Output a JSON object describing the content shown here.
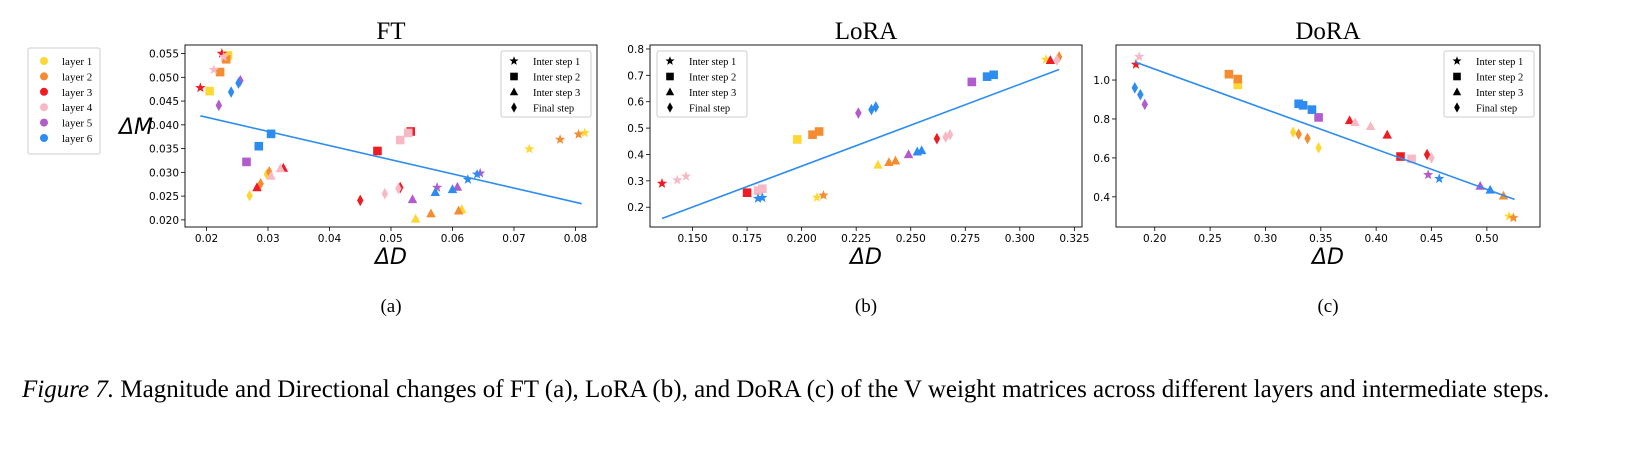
{
  "layer_legend": [
    {
      "label": "layer 1",
      "color": "#FDD835"
    },
    {
      "label": "layer 2",
      "color": "#F48C32"
    },
    {
      "label": "layer 3",
      "color": "#EF1C24"
    },
    {
      "label": "layer 4",
      "color": "#F8B9C6"
    },
    {
      "label": "layer 5",
      "color": "#B25BCC"
    },
    {
      "label": "layer 6",
      "color": "#2C8CF0"
    }
  ],
  "step_legend": [
    {
      "label": "Inter step 1",
      "marker": "star"
    },
    {
      "label": "Inter step 2",
      "marker": "square"
    },
    {
      "label": "Inter step 3",
      "marker": "triangle"
    },
    {
      "label": "Final step",
      "marker": "diamond"
    }
  ],
  "chart_data": [
    {
      "type": "scatter",
      "title": "FT",
      "xlabel": "ΔD",
      "ylabel": "ΔM",
      "sub_label": "(a)",
      "xlim": [
        0.0165,
        0.0835
      ],
      "ylim": [
        0.0185,
        0.0568
      ],
      "xticks": [
        0.02,
        0.03,
        0.04,
        0.05,
        0.06,
        0.07,
        0.08
      ],
      "xtick_labels": [
        "0.02",
        "0.03",
        "0.04",
        "0.05",
        "0.06",
        "0.07",
        "0.08"
      ],
      "yticks": [
        0.02,
        0.025,
        0.03,
        0.035,
        0.04,
        0.045,
        0.05,
        0.055
      ],
      "ytick_labels": [
        "0.020",
        "0.025",
        "0.030",
        "0.035",
        "0.040",
        "0.045",
        "0.050",
        "0.055"
      ],
      "legend_position": "top-right",
      "fit_line": [
        [
          0.019,
          0.0419
        ],
        [
          0.081,
          0.0234
        ]
      ],
      "points": [
        {
          "layer": 1,
          "step": 1,
          "x": 0.0725,
          "y": 0.0349
        },
        {
          "layer": 1,
          "step": 1,
          "x": 0.0815,
          "y": 0.0383
        },
        {
          "layer": 1,
          "step": 2,
          "x": 0.0235,
          "y": 0.0546
        },
        {
          "layer": 1,
          "step": 2,
          "x": 0.0205,
          "y": 0.0471
        },
        {
          "layer": 1,
          "step": 3,
          "x": 0.054,
          "y": 0.0202
        },
        {
          "layer": 1,
          "step": 3,
          "x": 0.0615,
          "y": 0.0222
        },
        {
          "layer": 1,
          "step": 4,
          "x": 0.027,
          "y": 0.0251
        },
        {
          "layer": 1,
          "step": 4,
          "x": 0.0298,
          "y": 0.0296
        },
        {
          "layer": 2,
          "step": 1,
          "x": 0.0775,
          "y": 0.0369
        },
        {
          "layer": 2,
          "step": 1,
          "x": 0.0805,
          "y": 0.038
        },
        {
          "layer": 2,
          "step": 2,
          "x": 0.0222,
          "y": 0.0511
        },
        {
          "layer": 2,
          "step": 2,
          "x": 0.0232,
          "y": 0.0538
        },
        {
          "layer": 2,
          "step": 3,
          "x": 0.0565,
          "y": 0.0213
        },
        {
          "layer": 2,
          "step": 3,
          "x": 0.061,
          "y": 0.0219
        },
        {
          "layer": 2,
          "step": 4,
          "x": 0.0288,
          "y": 0.0276
        },
        {
          "layer": 2,
          "step": 4,
          "x": 0.0302,
          "y": 0.0301
        },
        {
          "layer": 3,
          "step": 1,
          "x": 0.019,
          "y": 0.0478
        },
        {
          "layer": 3,
          "step": 1,
          "x": 0.0225,
          "y": 0.055
        },
        {
          "layer": 3,
          "step": 2,
          "x": 0.0478,
          "y": 0.0345
        },
        {
          "layer": 3,
          "step": 2,
          "x": 0.0532,
          "y": 0.0386
        },
        {
          "layer": 3,
          "step": 3,
          "x": 0.0282,
          "y": 0.0268
        },
        {
          "layer": 3,
          "step": 3,
          "x": 0.0325,
          "y": 0.0309
        },
        {
          "layer": 3,
          "step": 4,
          "x": 0.045,
          "y": 0.0241
        },
        {
          "layer": 3,
          "step": 4,
          "x": 0.0515,
          "y": 0.0268
        },
        {
          "layer": 4,
          "step": 1,
          "x": 0.0212,
          "y": 0.0516
        },
        {
          "layer": 4,
          "step": 1,
          "x": 0.0228,
          "y": 0.0543
        },
        {
          "layer": 4,
          "step": 2,
          "x": 0.0515,
          "y": 0.0368
        },
        {
          "layer": 4,
          "step": 2,
          "x": 0.0528,
          "y": 0.0383
        },
        {
          "layer": 4,
          "step": 3,
          "x": 0.0305,
          "y": 0.0292
        },
        {
          "layer": 4,
          "step": 3,
          "x": 0.032,
          "y": 0.0308
        },
        {
          "layer": 4,
          "step": 4,
          "x": 0.049,
          "y": 0.0255
        },
        {
          "layer": 4,
          "step": 4,
          "x": 0.0512,
          "y": 0.0266
        },
        {
          "layer": 5,
          "step": 1,
          "x": 0.0575,
          "y": 0.0268
        },
        {
          "layer": 5,
          "step": 1,
          "x": 0.0645,
          "y": 0.0298
        },
        {
          "layer": 5,
          "step": 2,
          "x": 0.0265,
          "y": 0.0322
        },
        {
          "layer": 5,
          "step": 3,
          "x": 0.0535,
          "y": 0.0243
        },
        {
          "layer": 5,
          "step": 3,
          "x": 0.0608,
          "y": 0.0269
        },
        {
          "layer": 5,
          "step": 4,
          "x": 0.022,
          "y": 0.0441
        },
        {
          "layer": 5,
          "step": 4,
          "x": 0.0255,
          "y": 0.0493
        },
        {
          "layer": 6,
          "step": 1,
          "x": 0.0625,
          "y": 0.0285
        },
        {
          "layer": 6,
          "step": 1,
          "x": 0.064,
          "y": 0.0296
        },
        {
          "layer": 6,
          "step": 2,
          "x": 0.0285,
          "y": 0.0355
        },
        {
          "layer": 6,
          "step": 2,
          "x": 0.0305,
          "y": 0.0381
        },
        {
          "layer": 6,
          "step": 3,
          "x": 0.0572,
          "y": 0.0258
        },
        {
          "layer": 6,
          "step": 3,
          "x": 0.06,
          "y": 0.0264
        },
        {
          "layer": 6,
          "step": 4,
          "x": 0.024,
          "y": 0.0469
        },
        {
          "layer": 6,
          "step": 4,
          "x": 0.0252,
          "y": 0.0488
        }
      ]
    },
    {
      "type": "scatter",
      "title": "LoRA",
      "xlabel": "ΔD",
      "ylabel": "",
      "sub_label": "(b)",
      "xlim": [
        0.1305,
        0.3285
      ],
      "ylim": [
        0.125,
        0.815
      ],
      "xticks": [
        0.15,
        0.175,
        0.2,
        0.225,
        0.25,
        0.275,
        0.3,
        0.325
      ],
      "xtick_labels": [
        "0.150",
        "0.175",
        "0.200",
        "0.225",
        "0.250",
        "0.275",
        "0.300",
        "0.325"
      ],
      "yticks": [
        0.2,
        0.3,
        0.4,
        0.5,
        0.6,
        0.7,
        0.8
      ],
      "ytick_labels": [
        "0.2",
        "0.3",
        "0.4",
        "0.5",
        "0.6",
        "0.7",
        "0.8"
      ],
      "legend_position": "top-left",
      "fit_line": [
        [
          0.136,
          0.157
        ],
        [
          0.318,
          0.722
        ]
      ],
      "points": [
        {
          "layer": 1,
          "step": 1,
          "x": 0.207,
          "y": 0.237
        },
        {
          "layer": 1,
          "step": 1,
          "x": 0.312,
          "y": 0.76
        },
        {
          "layer": 1,
          "step": 2,
          "x": 0.198,
          "y": 0.457
        },
        {
          "layer": 1,
          "step": 3,
          "x": 0.235,
          "y": 0.36
        },
        {
          "layer": 2,
          "step": 1,
          "x": 0.21,
          "y": 0.245
        },
        {
          "layer": 2,
          "step": 2,
          "x": 0.205,
          "y": 0.475
        },
        {
          "layer": 2,
          "step": 2,
          "x": 0.208,
          "y": 0.487
        },
        {
          "layer": 2,
          "step": 3,
          "x": 0.24,
          "y": 0.37
        },
        {
          "layer": 2,
          "step": 3,
          "x": 0.243,
          "y": 0.376
        },
        {
          "layer": 2,
          "step": 4,
          "x": 0.318,
          "y": 0.77
        },
        {
          "layer": 3,
          "step": 1,
          "x": 0.136,
          "y": 0.29
        },
        {
          "layer": 3,
          "step": 2,
          "x": 0.175,
          "y": 0.255
        },
        {
          "layer": 3,
          "step": 3,
          "x": 0.314,
          "y": 0.757
        },
        {
          "layer": 3,
          "step": 4,
          "x": 0.262,
          "y": 0.46
        },
        {
          "layer": 4,
          "step": 1,
          "x": 0.143,
          "y": 0.303
        },
        {
          "layer": 4,
          "step": 1,
          "x": 0.147,
          "y": 0.317
        },
        {
          "layer": 4,
          "step": 2,
          "x": 0.18,
          "y": 0.263
        },
        {
          "layer": 4,
          "step": 2,
          "x": 0.182,
          "y": 0.27
        },
        {
          "layer": 4,
          "step": 4,
          "x": 0.266,
          "y": 0.466
        },
        {
          "layer": 4,
          "step": 4,
          "x": 0.268,
          "y": 0.475
        },
        {
          "layer": 4,
          "step": 4,
          "x": 0.317,
          "y": 0.758
        },
        {
          "layer": 5,
          "step": 4,
          "x": 0.226,
          "y": 0.557
        },
        {
          "layer": 5,
          "step": 2,
          "x": 0.278,
          "y": 0.675
        },
        {
          "layer": 5,
          "step": 3,
          "x": 0.249,
          "y": 0.4
        },
        {
          "layer": 6,
          "step": 1,
          "x": 0.18,
          "y": 0.233
        },
        {
          "layer": 6,
          "step": 1,
          "x": 0.182,
          "y": 0.236
        },
        {
          "layer": 6,
          "step": 2,
          "x": 0.285,
          "y": 0.695
        },
        {
          "layer": 6,
          "step": 2,
          "x": 0.288,
          "y": 0.702
        },
        {
          "layer": 6,
          "step": 3,
          "x": 0.253,
          "y": 0.41
        },
        {
          "layer": 6,
          "step": 3,
          "x": 0.255,
          "y": 0.415
        },
        {
          "layer": 6,
          "step": 4,
          "x": 0.232,
          "y": 0.57
        },
        {
          "layer": 6,
          "step": 4,
          "x": 0.234,
          "y": 0.58
        }
      ]
    },
    {
      "type": "scatter",
      "title": "DoRA",
      "xlabel": "ΔD",
      "ylabel": "",
      "sub_label": "(c)",
      "xlim": [
        0.165,
        0.548
      ],
      "ylim": [
        0.245,
        1.18
      ],
      "xticks": [
        0.2,
        0.25,
        0.3,
        0.35,
        0.4,
        0.45,
        0.5
      ],
      "xtick_labels": [
        "0.20",
        "0.25",
        "0.30",
        "0.35",
        "0.40",
        "0.45",
        "0.50"
      ],
      "yticks": [
        0.4,
        0.6,
        0.8,
        1.0
      ],
      "ytick_labels": [
        "0.4",
        "0.6",
        "0.8",
        "1.0"
      ],
      "legend_position": "top-right",
      "fit_line": [
        [
          0.182,
          1.093
        ],
        [
          0.525,
          0.387
        ]
      ],
      "points": [
        {
          "layer": 1,
          "step": 1,
          "x": 0.52,
          "y": 0.3
        },
        {
          "layer": 1,
          "step": 2,
          "x": 0.275,
          "y": 0.975
        },
        {
          "layer": 1,
          "step": 4,
          "x": 0.325,
          "y": 0.732
        },
        {
          "layer": 1,
          "step": 4,
          "x": 0.348,
          "y": 0.652
        },
        {
          "layer": 2,
          "step": 1,
          "x": 0.524,
          "y": 0.292
        },
        {
          "layer": 2,
          "step": 2,
          "x": 0.267,
          "y": 1.03
        },
        {
          "layer": 2,
          "step": 2,
          "x": 0.275,
          "y": 1.005
        },
        {
          "layer": 2,
          "step": 3,
          "x": 0.515,
          "y": 0.405
        },
        {
          "layer": 2,
          "step": 4,
          "x": 0.33,
          "y": 0.722
        },
        {
          "layer": 2,
          "step": 4,
          "x": 0.338,
          "y": 0.7
        },
        {
          "layer": 3,
          "step": 1,
          "x": 0.183,
          "y": 1.08
        },
        {
          "layer": 3,
          "step": 2,
          "x": 0.422,
          "y": 0.607
        },
        {
          "layer": 3,
          "step": 3,
          "x": 0.376,
          "y": 0.792
        },
        {
          "layer": 3,
          "step": 3,
          "x": 0.41,
          "y": 0.718
        },
        {
          "layer": 3,
          "step": 4,
          "x": 0.446,
          "y": 0.617
        },
        {
          "layer": 4,
          "step": 1,
          "x": 0.186,
          "y": 1.12
        },
        {
          "layer": 4,
          "step": 2,
          "x": 0.432,
          "y": 0.595
        },
        {
          "layer": 4,
          "step": 3,
          "x": 0.381,
          "y": 0.782
        },
        {
          "layer": 4,
          "step": 3,
          "x": 0.395,
          "y": 0.762
        },
        {
          "layer": 4,
          "step": 4,
          "x": 0.45,
          "y": 0.6
        },
        {
          "layer": 5,
          "step": 1,
          "x": 0.447,
          "y": 0.513
        },
        {
          "layer": 5,
          "step": 2,
          "x": 0.348,
          "y": 0.808
        },
        {
          "layer": 5,
          "step": 3,
          "x": 0.494,
          "y": 0.455
        },
        {
          "layer": 5,
          "step": 4,
          "x": 0.191,
          "y": 0.875
        },
        {
          "layer": 6,
          "step": 1,
          "x": 0.457,
          "y": 0.493
        },
        {
          "layer": 6,
          "step": 2,
          "x": 0.33,
          "y": 0.878
        },
        {
          "layer": 6,
          "step": 2,
          "x": 0.334,
          "y": 0.87
        },
        {
          "layer": 6,
          "step": 2,
          "x": 0.342,
          "y": 0.848
        },
        {
          "layer": 6,
          "step": 3,
          "x": 0.503,
          "y": 0.435
        },
        {
          "layer": 6,
          "step": 4,
          "x": 0.182,
          "y": 0.96
        },
        {
          "layer": 6,
          "step": 4,
          "x": 0.187,
          "y": 0.925
        }
      ]
    }
  ],
  "caption": {
    "label": "Figure 7.",
    "text": "Magnitude and Directional changes of FT (a), LoRA (b), and DoRA (c) of the V weight matrices across different layers and intermediate steps."
  }
}
